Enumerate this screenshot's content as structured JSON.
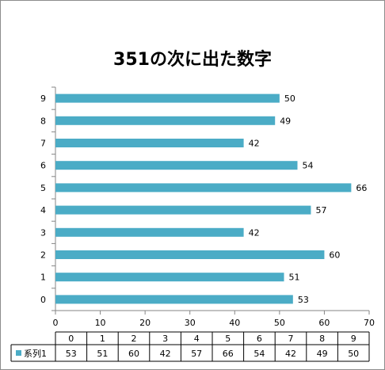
{
  "chart_data": {
    "type": "bar",
    "orientation": "horizontal",
    "title": "351の次に出た数字",
    "categories": [
      "0",
      "1",
      "2",
      "3",
      "4",
      "5",
      "6",
      "7",
      "8",
      "9"
    ],
    "series": [
      {
        "name": "系列1",
        "values": [
          53,
          51,
          60,
          42,
          57,
          66,
          54,
          42,
          49,
          50
        ]
      }
    ],
    "xlim": [
      0,
      70
    ],
    "x_ticks": [
      0,
      10,
      20,
      30,
      40,
      50,
      60,
      70
    ],
    "grid": false,
    "data_labels": true,
    "legend": "data-table-below",
    "bar_color": "#4bacc6"
  }
}
